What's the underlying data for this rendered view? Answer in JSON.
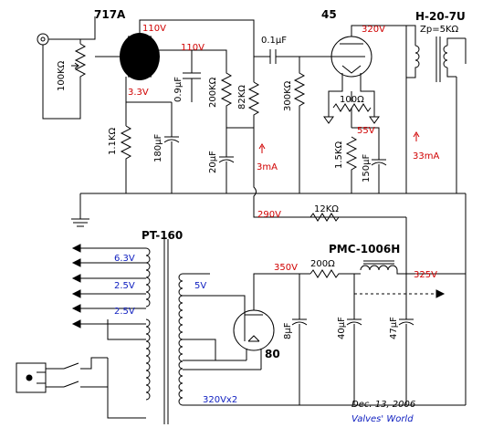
{
  "tubes": {
    "input_tube": "717A",
    "output_tube": "45",
    "rectifier": "80"
  },
  "transformers": {
    "output": "H-20-7U",
    "output_impedance": "Zp=5KΩ",
    "power": "PT-160",
    "choke": "PMC-1006H"
  },
  "components": {
    "volume_pot": "100KΩ",
    "coupling_cap": "0.1μF",
    "screen_cap": "0.9μF",
    "screen_resistor": "200KΩ",
    "plate_resistor": "82KΩ",
    "grid_resistor": "300KΩ",
    "hum_pot": "100Ω",
    "cathode_resistor_717a": "1.1KΩ",
    "cathode_cap_717a": "180μF",
    "decoupling_cap": "20μF",
    "cathode_resistor_45": "1.5KΩ",
    "cathode_cap_45": "150μF",
    "dropping_resistor": "12KΩ",
    "filter_resistor": "200Ω",
    "filter_cap_1": "8μF",
    "filter_cap_2": "40μF",
    "filter_cap_3": "47μF"
  },
  "voltages": {
    "plate_717a": "110V",
    "screen_717a": "110V",
    "cathode_717a": "3.3V",
    "plate_45": "320V",
    "cathode_45": "55V",
    "b_plus_1": "290V",
    "rectifier_out": "350V",
    "b_plus_2": "325V"
  },
  "currents": {
    "current_717a": "3mA",
    "current_45": "33mA"
  },
  "windings": {
    "heater_45": "6.3V",
    "heater_1": "2.5V",
    "heater_2": "2.5V",
    "rectifier_heater": "5V",
    "high_voltage": "320Vx2"
  },
  "footer": {
    "date": "Dec. 13, 2006",
    "site": "Valves' World"
  }
}
